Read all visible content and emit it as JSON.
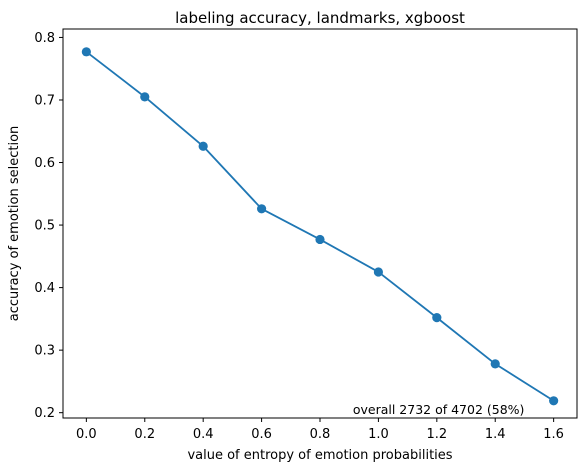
{
  "chart_data": {
    "type": "line",
    "title": "labeling accuracy, landmarks, xgboost",
    "xlabel": "value of entropy of emotion probabilities",
    "ylabel": "accuracy of emotion selection",
    "x": [
      0.0,
      0.2,
      0.4,
      0.6,
      0.8,
      1.0,
      1.2,
      1.4,
      1.6
    ],
    "series": [
      {
        "values": [
          0.777,
          0.705,
          0.626,
          0.526,
          0.477,
          0.425,
          0.352,
          0.278,
          0.219
        ]
      }
    ],
    "xlim": [
      -0.08,
      1.68
    ],
    "ylim": [
      0.1915,
      0.8135
    ],
    "xticks": [
      0.0,
      0.2,
      0.4,
      0.6,
      0.8,
      1.0,
      1.2,
      1.4,
      1.6
    ],
    "xtick_labels": [
      "0.0",
      "0.2",
      "0.4",
      "0.6",
      "0.8",
      "1.0",
      "1.2",
      "1.4",
      "1.6"
    ],
    "yticks": [
      0.2,
      0.3,
      0.4,
      0.5,
      0.6,
      0.7,
      0.8
    ],
    "ytick_labels": [
      "0.2",
      "0.3",
      "0.4",
      "0.5",
      "0.6",
      "0.7",
      "0.8"
    ],
    "annotation": "overall 2732 of 4702 (58%)",
    "grid": false,
    "legend": "none",
    "line_color": "#1f77b4"
  }
}
